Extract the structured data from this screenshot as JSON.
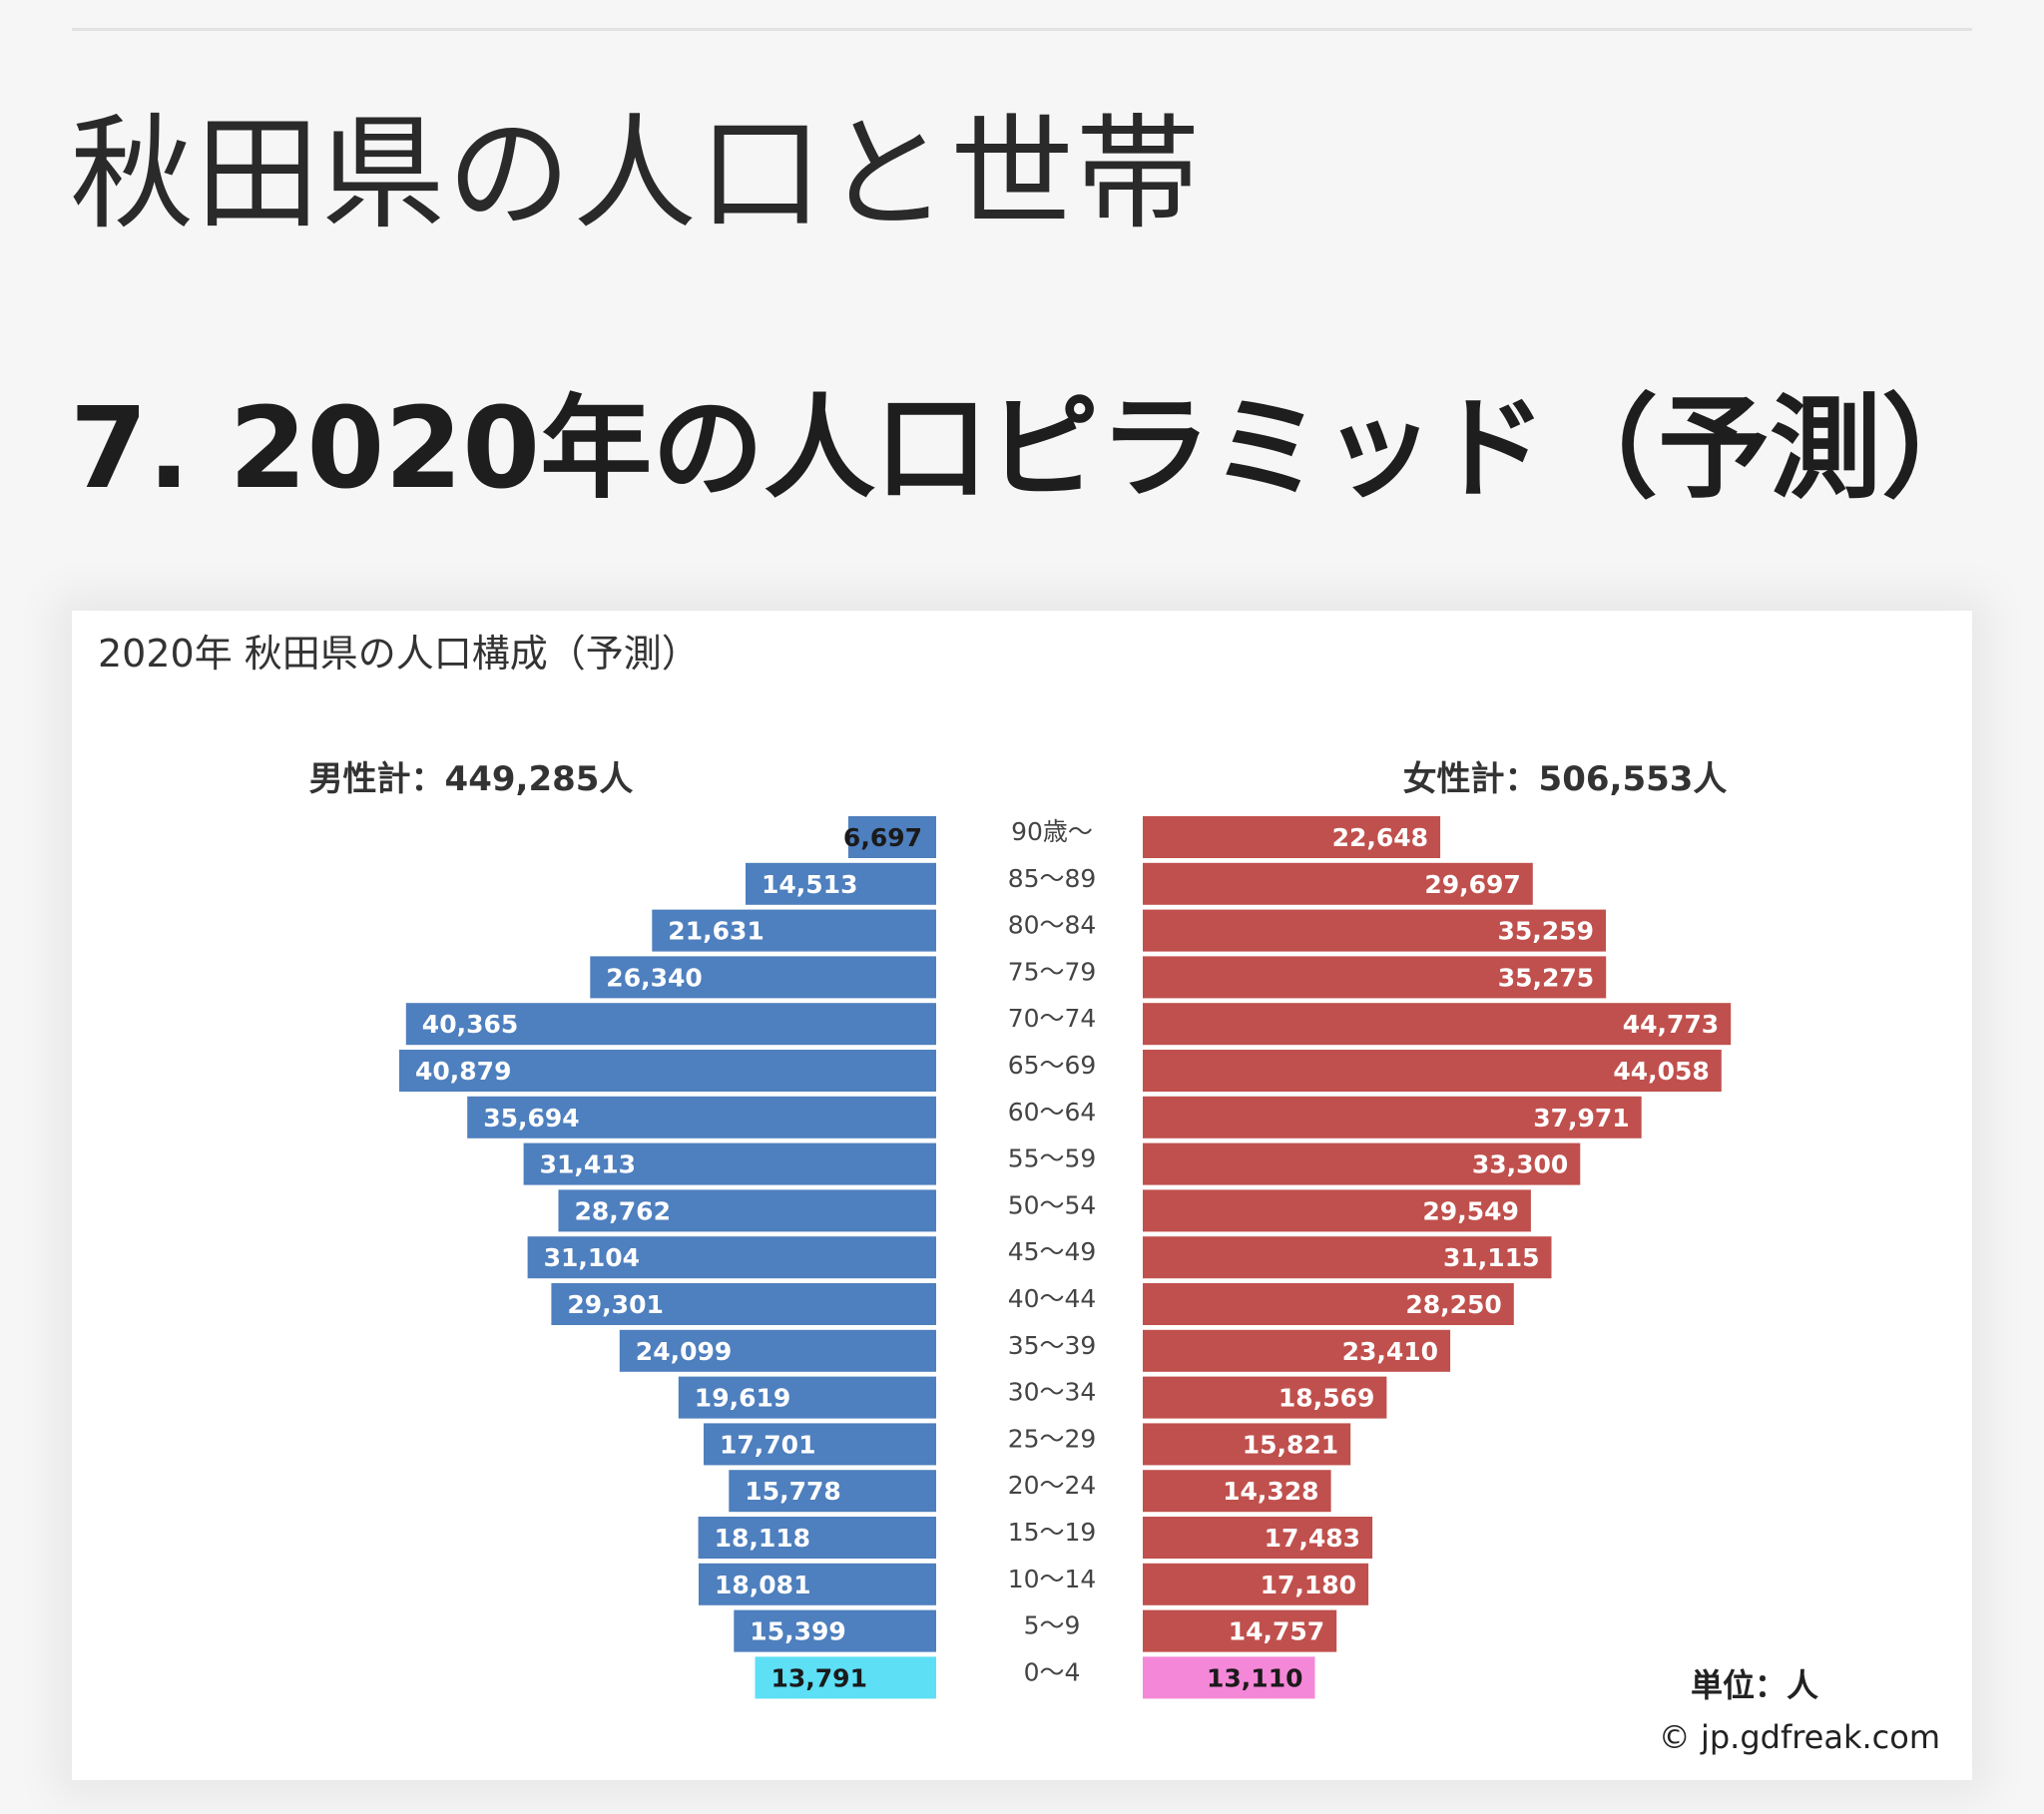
{
  "page": {
    "title": "秋田県の人口と世帯",
    "section_title": "7. 2020年の人口ピラミッド（予測）"
  },
  "chart_data": {
    "type": "bar",
    "orientation": "horizontal-pyramid",
    "title": "2020年 秋田県の人口構成（予測）",
    "male_total_label": "男性計：449,285人",
    "female_total_label": "女性計：506,553人",
    "unit_label": "単位：人",
    "credit": "© jp.gdfreak.com",
    "categories": [
      "90歳～",
      "85～89",
      "80～84",
      "75～79",
      "70～74",
      "65～69",
      "60～64",
      "55～59",
      "50～54",
      "45～49",
      "40～44",
      "35～39",
      "30～34",
      "25～29",
      "20～24",
      "15～19",
      "10～14",
      "5～9",
      "0～4"
    ],
    "series": [
      {
        "values": [
          6697,
          14513,
          21631,
          26340,
          40365,
          40879,
          35694,
          31413,
          28762,
          31104,
          29301,
          24099,
          19619,
          17701,
          15778,
          18118,
          18081,
          15399,
          13791
        ],
        "labels": [
          "6,697",
          "14,513",
          "21,631",
          "26,340",
          "40,365",
          "40,879",
          "35,694",
          "31,413",
          "28,762",
          "31,104",
          "29,301",
          "24,099",
          "19,619",
          "17,701",
          "15,778",
          "18,118",
          "18,081",
          "15,399",
          "13,791"
        ],
        "color": "#4e7fbe",
        "highlight_color": "#5ddff5"
      },
      {
        "values": [
          22648,
          29697,
          35259,
          35275,
          44773,
          44058,
          37971,
          33300,
          29549,
          31115,
          28250,
          23410,
          18569,
          15821,
          14328,
          17483,
          17180,
          14757,
          13110
        ],
        "labels": [
          "22,648",
          "29,697",
          "35,259",
          "35,275",
          "44,773",
          "44,058",
          "37,971",
          "33,300",
          "29,549",
          "31,115",
          "28,250",
          "23,410",
          "18,569",
          "15,821",
          "14,328",
          "17,483",
          "17,180",
          "14,757",
          "13,110"
        ],
        "color": "#c0504d",
        "highlight_color": "#f587d8"
      }
    ],
    "xlim": [
      0,
      45000
    ],
    "grid": false
  }
}
